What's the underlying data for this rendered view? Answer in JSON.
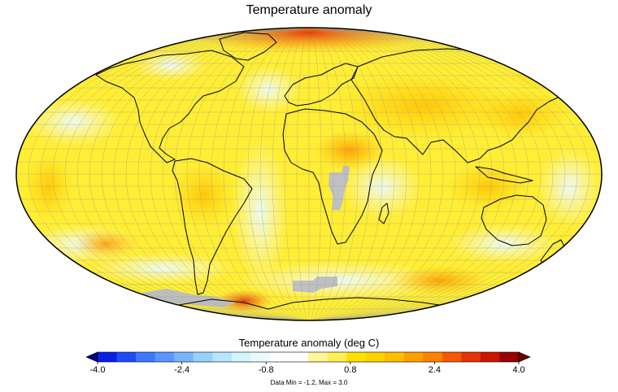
{
  "title": "Temperature anomaly",
  "colorbar": {
    "label": "Temperature anomaly (deg C)",
    "min": -4.0,
    "max": 4.0,
    "tick_labels": [
      "-4.0",
      "-2.4",
      "-0.8",
      "0.8",
      "2.4",
      "4.0"
    ],
    "tick_values": [
      -4.0,
      -2.4,
      -0.8,
      0.8,
      2.4,
      4.0
    ],
    "colors": [
      "#0a1ee6",
      "#1e4bf5",
      "#3c78ff",
      "#5a96ff",
      "#78b4ff",
      "#96d2ff",
      "#b4e6ff",
      "#d2f5ff",
      "#eafaff",
      "#ffffff",
      "#ffffff",
      "#fff59a",
      "#ffee55",
      "#ffe000",
      "#ffd200",
      "#ffbe00",
      "#ffa000",
      "#ff8200",
      "#f55a00",
      "#e63200",
      "#cc1400",
      "#990000"
    ],
    "extend": "both"
  },
  "stats_text": "Data Min = -1.2, Max = 3.0",
  "map": {
    "projection": "mollweide",
    "missing_color": "#c0c0c0",
    "background_color": "#ffee33"
  }
}
